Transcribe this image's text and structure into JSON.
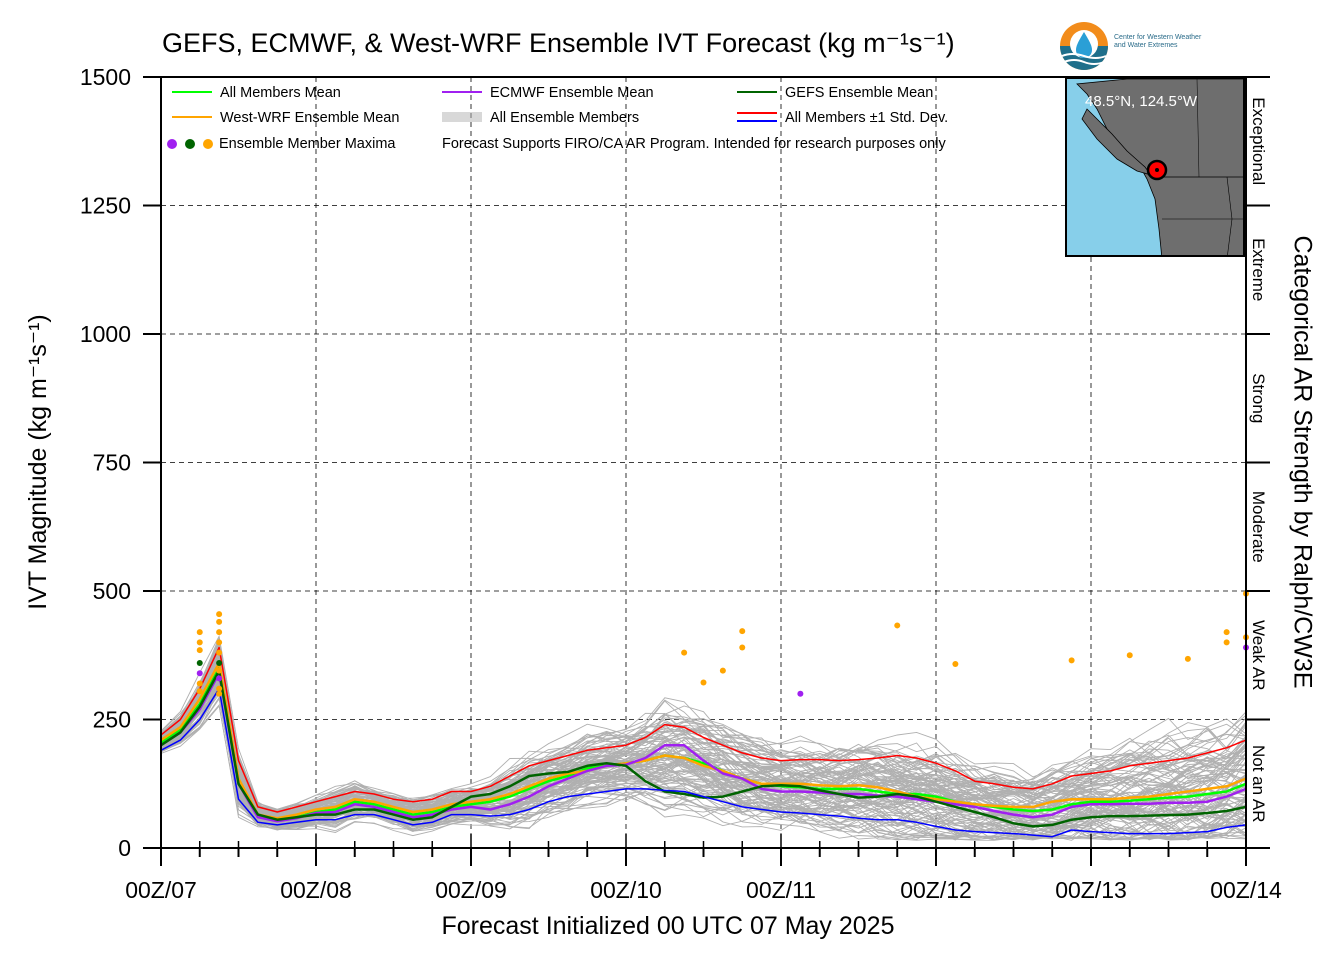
{
  "chart_data": {
    "type": "line",
    "title": "GEFS, ECMWF, & West-WRF Ensemble IVT Forecast (kg m⁻¹s⁻¹)",
    "xlabel": "Forecast Initialized 00 UTC 07 May 2025",
    "ylabel": "IVT Magnitude (kg m⁻¹s⁻¹)",
    "y2label": "Categorical AR Strength by Ralph/CW3E",
    "xlim": [
      0,
      168
    ],
    "ylim": [
      0,
      1500
    ],
    "xtick_values": [
      0,
      24,
      48,
      72,
      96,
      120,
      144,
      168
    ],
    "xtick_labels": [
      "00Z/07",
      "00Z/08",
      "00Z/09",
      "00Z/10",
      "00Z/11",
      "00Z/12",
      "00Z/13",
      "00Z/14"
    ],
    "yticks": [
      0,
      250,
      500,
      750,
      1000,
      1250,
      1500
    ],
    "grid": true,
    "legend_placement": "top-left",
    "categories": [
      {
        "label": "Not an AR",
        "from": 0,
        "to": 250
      },
      {
        "label": "Weak AR",
        "from": 250,
        "to": 500
      },
      {
        "label": "Moderate",
        "from": 500,
        "to": 750
      },
      {
        "label": "Strong",
        "from": 750,
        "to": 1000
      },
      {
        "label": "Extreme",
        "from": 1000,
        "to": 1250
      },
      {
        "label": "Exceptional",
        "from": 1250,
        "to": 1500
      }
    ],
    "legend": [
      {
        "label": "All Members Mean",
        "color": "#00ff00",
        "kind": "line"
      },
      {
        "label": "West-WRF Ensemble Mean",
        "color": "#ffa500",
        "kind": "line"
      },
      {
        "label": "Ensemble Member Maxima",
        "colors": [
          "#a020f0",
          "#006400",
          "#ffa500"
        ],
        "kind": "dots"
      },
      {
        "label": "ECMWF Ensemble Mean",
        "color": "#a020f0",
        "kind": "line"
      },
      {
        "label": "All Ensemble Members",
        "color": "#b0b0b0",
        "kind": "multiline"
      },
      {
        "label": "GEFS Ensemble Mean",
        "color": "#006400",
        "kind": "line"
      },
      {
        "label": "All Members ±1 Std. Dev.",
        "colors": [
          "#ff0000",
          "#0000ff"
        ],
        "kind": "doubleline"
      }
    ],
    "note": "Forecast Supports FIRO/CA AR Program. Intended for research purposes only",
    "x": [
      0,
      3,
      6,
      9,
      12,
      15,
      18,
      21,
      24,
      27,
      30,
      33,
      36,
      39,
      42,
      45,
      48,
      51,
      54,
      57,
      60,
      63,
      66,
      69,
      72,
      75,
      78,
      81,
      84,
      87,
      90,
      93,
      96,
      99,
      102,
      105,
      108,
      111,
      114,
      117,
      120,
      123,
      126,
      129,
      132,
      135,
      138,
      141,
      144,
      147,
      150,
      153,
      156,
      159,
      162,
      165,
      168
    ],
    "series": [
      {
        "name": "All Members Mean",
        "color": "#00ff00",
        "width": 2.5,
        "values": [
          205,
          230,
          280,
          350,
          130,
          65,
          55,
          60,
          70,
          75,
          90,
          85,
          75,
          65,
          70,
          80,
          85,
          90,
          100,
          115,
          130,
          140,
          155,
          160,
          165,
          170,
          180,
          175,
          165,
          150,
          135,
          125,
          120,
          118,
          115,
          115,
          115,
          110,
          105,
          105,
          100,
          90,
          85,
          80,
          75,
          72,
          75,
          85,
          90,
          90,
          92,
          95,
          98,
          100,
          105,
          110,
          125
        ]
      },
      {
        "name": "West-WRF Ensemble Mean",
        "color": "#ffa500",
        "width": 2.5,
        "values": [
          210,
          235,
          290,
          360,
          135,
          65,
          58,
          65,
          75,
          80,
          95,
          90,
          80,
          70,
          75,
          85,
          90,
          95,
          105,
          120,
          135,
          145,
          150,
          160,
          165,
          170,
          180,
          175,
          160,
          150,
          135,
          125,
          125,
          125,
          122,
          120,
          122,
          118,
          110,
          100,
          95,
          90,
          85,
          82,
          80,
          80,
          90,
          95,
          95,
          95,
          98,
          100,
          105,
          110,
          115,
          120,
          135
        ]
      },
      {
        "name": "ECMWF Ensemble Mean",
        "color": "#a020f0",
        "width": 2.5,
        "values": [
          200,
          225,
          270,
          340,
          125,
          60,
          52,
          58,
          68,
          70,
          85,
          80,
          70,
          60,
          65,
          75,
          80,
          75,
          85,
          100,
          120,
          135,
          150,
          160,
          162,
          175,
          200,
          200,
          170,
          145,
          135,
          115,
          110,
          110,
          108,
          105,
          105,
          102,
          100,
          95,
          90,
          85,
          80,
          72,
          65,
          60,
          65,
          80,
          85,
          85,
          86,
          86,
          88,
          88,
          90,
          100,
          115
        ]
      },
      {
        "name": "GEFS Ensemble Mean",
        "color": "#006400",
        "width": 2.5,
        "values": [
          200,
          225,
          275,
          345,
          125,
          65,
          55,
          60,
          65,
          65,
          75,
          75,
          65,
          55,
          60,
          80,
          100,
          105,
          120,
          140,
          145,
          148,
          160,
          165,
          160,
          130,
          110,
          105,
          98,
          100,
          110,
          120,
          122,
          120,
          112,
          105,
          98,
          100,
          105,
          100,
          90,
          80,
          70,
          60,
          48,
          42,
          45,
          55,
          60,
          62,
          62,
          63,
          64,
          65,
          68,
          72,
          80
        ]
      },
      {
        "name": "All Members +1 Std. Dev.",
        "color": "#ff0000",
        "width": 1.5,
        "values": [
          220,
          250,
          310,
          390,
          170,
          80,
          70,
          80,
          90,
          100,
          110,
          105,
          95,
          90,
          95,
          110,
          110,
          120,
          140,
          160,
          170,
          180,
          190,
          195,
          200,
          215,
          240,
          235,
          215,
          200,
          185,
          175,
          170,
          172,
          172,
          170,
          172,
          175,
          180,
          175,
          165,
          150,
          130,
          125,
          118,
          115,
          125,
          140,
          145,
          150,
          160,
          165,
          170,
          175,
          185,
          195,
          210
        ]
      },
      {
        "name": "All Members -1 Std. Dev.",
        "color": "#0000ff",
        "width": 1.5,
        "values": [
          190,
          210,
          250,
          310,
          95,
          50,
          45,
          50,
          55,
          55,
          65,
          65,
          55,
          45,
          50,
          65,
          65,
          62,
          65,
          75,
          90,
          100,
          105,
          110,
          115,
          115,
          112,
          110,
          100,
          90,
          80,
          75,
          70,
          68,
          65,
          62,
          58,
          55,
          55,
          50,
          42,
          35,
          32,
          30,
          28,
          25,
          22,
          35,
          32,
          30,
          28,
          28,
          28,
          30,
          32,
          40,
          45
        ]
      }
    ],
    "member_maxima": [
      {
        "x": 6,
        "y": 420,
        "color": "#ffa500"
      },
      {
        "x": 6,
        "y": 400,
        "color": "#ffa500"
      },
      {
        "x": 6,
        "y": 385,
        "color": "#ffa500"
      },
      {
        "x": 6,
        "y": 360,
        "color": "#006400"
      },
      {
        "x": 6,
        "y": 340,
        "color": "#a020f0"
      },
      {
        "x": 6,
        "y": 320,
        "color": "#ffa500"
      },
      {
        "x": 6,
        "y": 305,
        "color": "#ffa500"
      },
      {
        "x": 9,
        "y": 440,
        "color": "#ffa500"
      },
      {
        "x": 9,
        "y": 420,
        "color": "#ffa500"
      },
      {
        "x": 9,
        "y": 400,
        "color": "#ffa500"
      },
      {
        "x": 9,
        "y": 380,
        "color": "#ffa500"
      },
      {
        "x": 9,
        "y": 360,
        "color": "#006400"
      },
      {
        "x": 9,
        "y": 345,
        "color": "#ffa500"
      },
      {
        "x": 9,
        "y": 330,
        "color": "#a020f0"
      },
      {
        "x": 9,
        "y": 310,
        "color": "#ffa500"
      },
      {
        "x": 9,
        "y": 300,
        "color": "#ffa500"
      },
      {
        "x": 9,
        "y": 455,
        "color": "#ffa500"
      },
      {
        "x": 81,
        "y": 380,
        "color": "#ffa500"
      },
      {
        "x": 84,
        "y": 322,
        "color": "#ffa500"
      },
      {
        "x": 87,
        "y": 345,
        "color": "#ffa500"
      },
      {
        "x": 90,
        "y": 422,
        "color": "#ffa500"
      },
      {
        "x": 90,
        "y": 390,
        "color": "#ffa500"
      },
      {
        "x": 99,
        "y": 300,
        "color": "#a020f0"
      },
      {
        "x": 114,
        "y": 433,
        "color": "#ffa500"
      },
      {
        "x": 123,
        "y": 358,
        "color": "#ffa500"
      },
      {
        "x": 141,
        "y": 365,
        "color": "#ffa500"
      },
      {
        "x": 150,
        "y": 375,
        "color": "#ffa500"
      },
      {
        "x": 159,
        "y": 368,
        "color": "#ffa500"
      },
      {
        "x": 165,
        "y": 420,
        "color": "#ffa500"
      },
      {
        "x": 165,
        "y": 400,
        "color": "#ffa500"
      },
      {
        "x": 168,
        "y": 495,
        "color": "#ffa500"
      },
      {
        "x": 168,
        "y": 410,
        "color": "#ffa500"
      },
      {
        "x": 168,
        "y": 390,
        "color": "#a020f0"
      }
    ],
    "members_color": "#b0b0b0"
  },
  "inset_map": {
    "label": "48.5°N, 124.5°W",
    "ocean_color": "#87cfea",
    "land_color": "#6e6e6e",
    "marker_color": "#ff0000"
  },
  "logo": {
    "line1": "Center for Western Weather",
    "line2": "and Water Extremes"
  }
}
